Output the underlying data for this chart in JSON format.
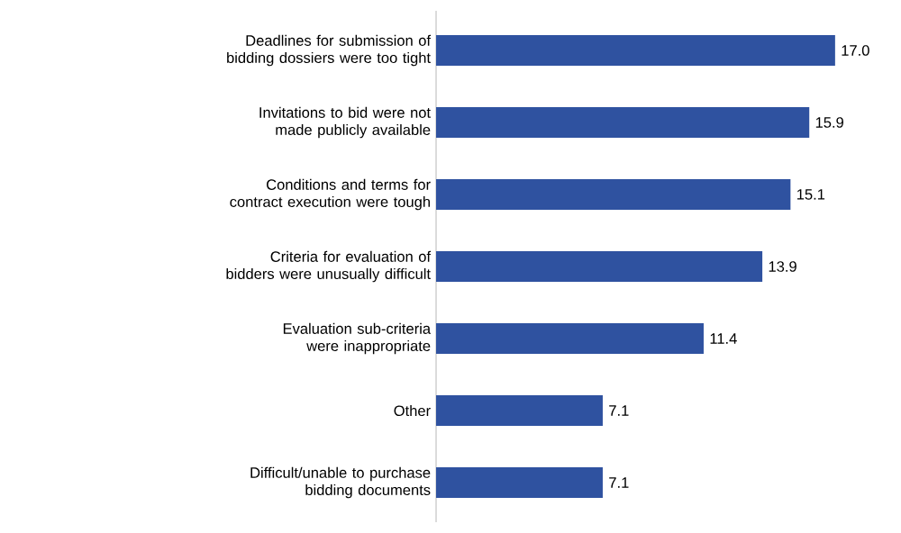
{
  "chart_data": {
    "type": "bar",
    "orientation": "horizontal",
    "color": "#2f52a0",
    "value_labels": [
      "17.0",
      "15.9",
      "15.1",
      "13.9",
      "11.4",
      "7.1",
      "7.1"
    ],
    "categories": [
      "Deadlines for submission of bidding dossiers were too tight",
      "Invitations to bid were not made publicly available",
      "Conditions and terms for contract execution were tough",
      "Criteria for evaluation of bidders were unusually difficult",
      "Evaluation sub-criteria were inappropriate",
      "Other",
      "Difficult/unable to purchase bidding documents"
    ],
    "values": [
      17.0,
      15.9,
      15.1,
      13.9,
      11.4,
      7.1,
      7.1
    ]
  }
}
